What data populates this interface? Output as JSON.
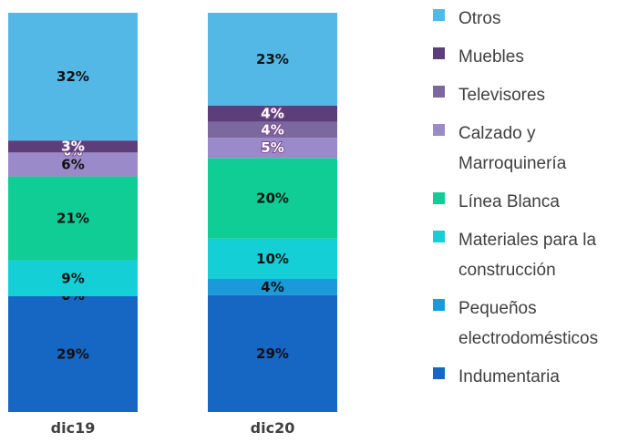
{
  "chart_data": {
    "type": "bar",
    "stacked": true,
    "normalized": true,
    "categories": [
      "dic19",
      "dic20"
    ],
    "series": [
      {
        "name": "Indumentaria",
        "color": "#1666c4",
        "values": [
          29,
          29
        ],
        "labels": [
          "29%",
          "29%"
        ]
      },
      {
        "name": "Pequeños electrodomésticos",
        "color": "#1a9ad9",
        "values": [
          0,
          4
        ],
        "labels": [
          "0%",
          "4%"
        ]
      },
      {
        "name": "Materiales para la construcción",
        "color": "#14cfd6",
        "values": [
          9,
          10
        ],
        "labels": [
          "9%",
          "10%"
        ]
      },
      {
        "name": "Línea Blanca",
        "color": "#10cc95",
        "values": [
          21,
          20
        ],
        "labels": [
          "21%",
          "20%"
        ]
      },
      {
        "name": "Calzado y Marroquinería",
        "color": "#9b8ac9",
        "values": [
          6,
          5
        ],
        "labels": [
          "6%",
          "5%"
        ]
      },
      {
        "name": "Televisores",
        "color": "#7a689e",
        "values": [
          0,
          4
        ],
        "labels": [
          "0%",
          "4%"
        ]
      },
      {
        "name": "Muebles",
        "color": "#5c3f7a",
        "values": [
          3,
          4
        ],
        "labels": [
          "3%",
          "4%"
        ]
      },
      {
        "name": "Otros",
        "color": "#53b8e6",
        "values": [
          32,
          23
        ],
        "labels": [
          "32%",
          "23%"
        ]
      }
    ],
    "legend_position": "right",
    "legend": [
      {
        "label": "Otros",
        "color": "#53b8e6"
      },
      {
        "label": "Muebles",
        "color": "#5c3f7a"
      },
      {
        "label": "Televisores",
        "color": "#7a689e"
      },
      {
        "label": "Calzado y\nMarroquinería",
        "color": "#9b8ac9"
      },
      {
        "label": "Línea Blanca",
        "color": "#10cc95"
      },
      {
        "label": "Materiales para la\nconstrucción",
        "color": "#14cfd6"
      },
      {
        "label": "Pequeños\nelectrodomésticos",
        "color": "#1a9ad9"
      },
      {
        "label": "Indumentaria",
        "color": "#1666c4"
      }
    ]
  }
}
